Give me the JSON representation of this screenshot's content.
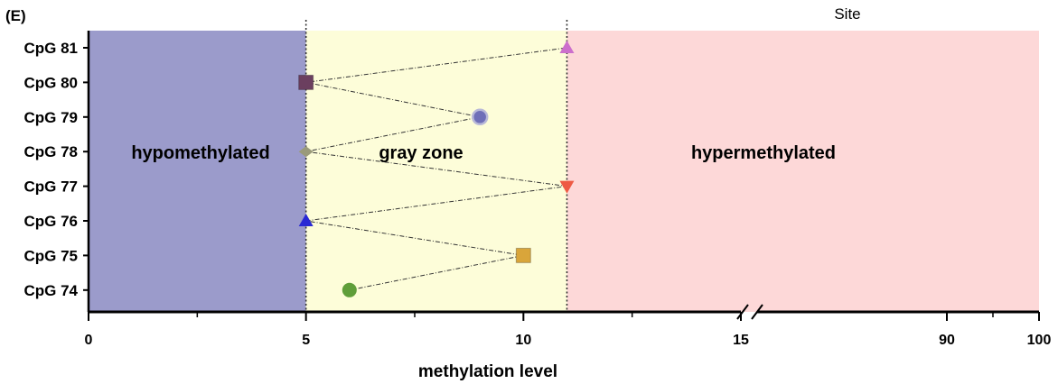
{
  "chart_data": {
    "type": "scatter",
    "panel_label": "(E)",
    "title": "",
    "legend_title": "Site",
    "xlabel": "methylation level",
    "ylabel": "",
    "x_ticks": [
      "0",
      "5",
      "10",
      "15",
      "90",
      "100"
    ],
    "x_axis_break": "between 15 and 90",
    "categories": [
      "CpG 74",
      "CpG 75",
      "CpG 76",
      "CpG 77",
      "CpG 78",
      "CpG 79",
      "CpG 80",
      "CpG 81"
    ],
    "zones": [
      {
        "label": "hypomethylated",
        "from": 0,
        "to": 5,
        "color": "#9b9bcb"
      },
      {
        "label": "gray zone",
        "from": 5,
        "to": 11,
        "color": "#fdfdd9"
      },
      {
        "label": "hypermethylated",
        "from": 11,
        "to": 100,
        "color": "#fdd8d8"
      }
    ],
    "thresholds": [
      5,
      11
    ],
    "points": [
      {
        "site": "CpG 74",
        "x": 6,
        "marker": "circle",
        "color": "#5f9e3a"
      },
      {
        "site": "CpG 75",
        "x": 10,
        "marker": "square",
        "color": "#d9a53a"
      },
      {
        "site": "CpG 76",
        "x": 5,
        "marker": "triangle-up",
        "color": "#2929d4"
      },
      {
        "site": "CpG 77",
        "x": 11,
        "marker": "triangle-down",
        "color": "#ee5a44"
      },
      {
        "site": "CpG 78",
        "x": 5,
        "marker": "diamond",
        "color": "#9a9a7a"
      },
      {
        "site": "CpG 79",
        "x": 9,
        "marker": "circle-ring",
        "color": "#6f6fb8"
      },
      {
        "site": "CpG 80",
        "x": 5,
        "marker": "square",
        "color": "#6b3f5f"
      },
      {
        "site": "CpG 81",
        "x": 11,
        "marker": "triangle-up",
        "color": "#cc6fcc"
      }
    ],
    "grid": false
  }
}
